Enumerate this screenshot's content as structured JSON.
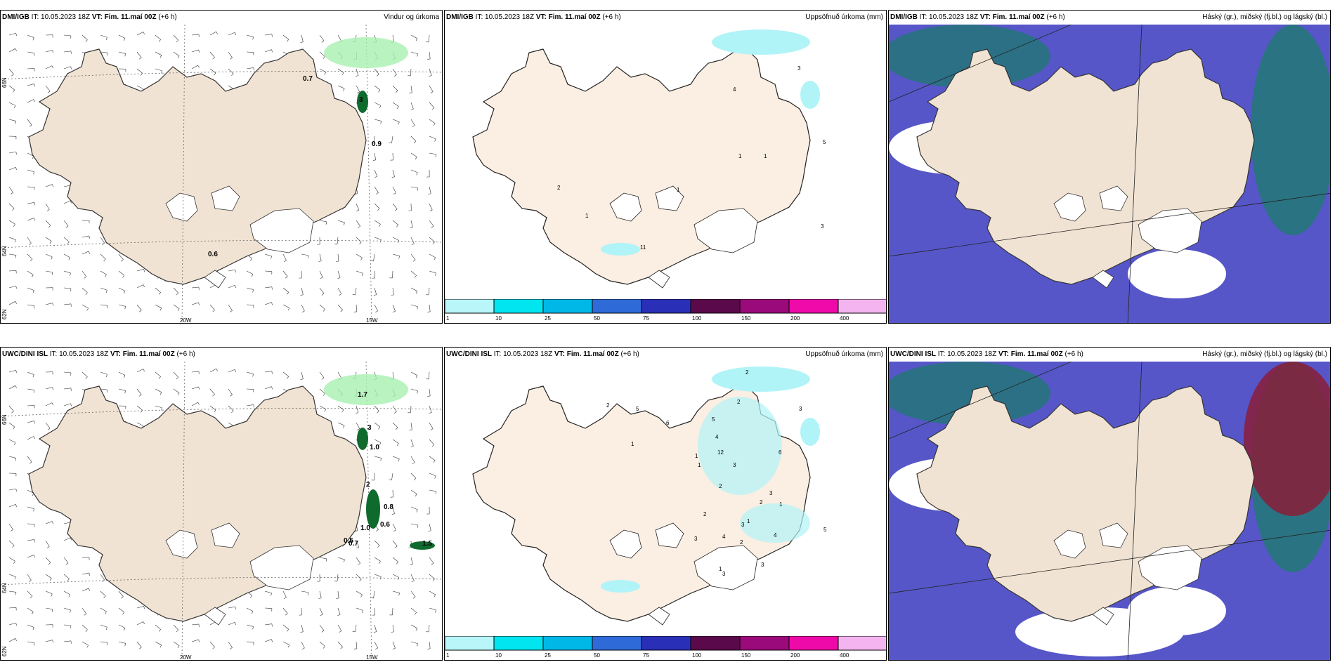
{
  "rows": [
    {
      "source": "DMI/IGB",
      "panels": [
        {
          "name": "wind-precip",
          "it": "IT: 10.05.2023 18Z",
          "vt": "VT: Fim. 11.maí 00Z",
          "lead": "(+6 h)",
          "title": "Vindur og úrkoma",
          "values": [
            "0.7",
            "3",
            "0.9",
            "0.6"
          ]
        },
        {
          "name": "accum-precip",
          "it": "IT: 10.05.2023 18Z",
          "vt": "VT: Fim. 11.maí 00Z",
          "lead": "(+6 h)",
          "title": "Uppsöfnuð úrkoma (mm)",
          "values": [
            "4",
            "1",
            "1",
            "5",
            "2",
            "1",
            "11",
            "1",
            "3",
            "3"
          ]
        },
        {
          "name": "cloud",
          "it": "IT: 10.05.2023 18Z",
          "vt": "VT: Fim. 11.maí 00Z",
          "lead": "(+6 h)",
          "title": "Háský (gr.), miðský (fj.bl.) og lágský (bl.)"
        }
      ]
    },
    {
      "source": "UWC/DINI ISL",
      "panels": [
        {
          "name": "wind-precip",
          "it": "IT: 10.05.2023 18Z",
          "vt": "VT: Fim. 11.maí 00Z",
          "lead": "(+6 h)",
          "title": "",
          "values": [
            "1.7",
            "3",
            "1.0",
            "2",
            "0.8",
            "0.6",
            "1.0",
            "0.5",
            "0.7",
            "1.5"
          ]
        },
        {
          "name": "accum-precip",
          "it": "IT: 10.05.2023 18Z",
          "vt": "VT: Fim. 11.maí 00Z",
          "lead": "(+6 h)",
          "title": "Uppsöfnuð úrkoma (mm)",
          "values": [
            "2",
            "2",
            "5",
            "6",
            "5",
            "2",
            "3",
            "4",
            "12",
            "1",
            "6",
            "3",
            "1",
            "1",
            "2",
            "1",
            "2",
            "3",
            "3",
            "4",
            "2",
            "3",
            "1",
            "4",
            "1",
            "2",
            "3",
            "5",
            "3"
          ]
        },
        {
          "name": "cloud",
          "it": "IT: 10.05.2023 18Z",
          "vt": "VT: Fim. 11.maí 00Z",
          "lead": "(+6 h)",
          "title": "Háský (gr.), miðský (fj.bl.) og lágský (bl.)"
        }
      ]
    }
  ],
  "axes": {
    "lat1": "66N",
    "lat2": "64N",
    "lat3": "62N",
    "lon1": "20W",
    "lon2": "15W"
  },
  "colorbar": {
    "ticks": [
      "1",
      "10",
      "25",
      "50",
      "75",
      "100",
      "150",
      "200",
      "400"
    ],
    "colors": [
      "#b8f6fa",
      "#00e5f0",
      "#00b8e8",
      "#2e6ad8",
      "#2a2fb8",
      "#5a0a4a",
      "#9a0a7a",
      "#ee0aa8",
      "#f4b4f0"
    ]
  },
  "colors": {
    "land": "#f1e3d3",
    "land_peach": "#fbeee2",
    "glacier": "#ffffff",
    "sea_dark": "#5656c8",
    "precip": "#a8f0b0",
    "precip_dark": "#0f6a2e",
    "accum": "#b0f4f8"
  }
}
